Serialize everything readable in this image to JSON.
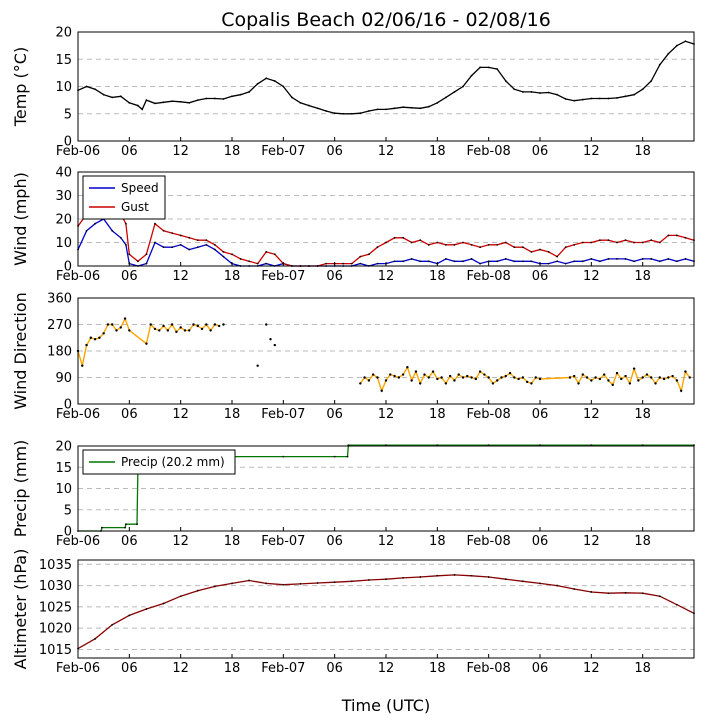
{
  "title": "Copalis Beach 02/06/16 - 02/08/16",
  "xlabel": "Time (UTC)",
  "x_tick_labels": [
    "Feb-06",
    "06",
    "12",
    "18",
    "Feb-07",
    "06",
    "12",
    "18",
    "Feb-08",
    "06",
    "12",
    "18"
  ],
  "x_tick_hours": [
    0,
    6,
    12,
    18,
    24,
    30,
    36,
    42,
    48,
    54,
    60,
    66
  ],
  "x_range_hours": [
    0,
    72
  ],
  "colors": {
    "speed": "#0000cc",
    "gust": "#cc0000",
    "direction": "#ffa500",
    "precip": "#007700",
    "altimeter": "#880000",
    "temp": "#000000",
    "grid": "#bbbbbb"
  },
  "chart_data": [
    {
      "type": "line",
      "ylabel": "Temp (°C)",
      "ylim": [
        0,
        20
      ],
      "yticks": [
        0,
        5,
        10,
        15,
        20
      ],
      "grid": true,
      "series": [
        {
          "x": [
            0,
            1,
            2,
            3,
            4,
            5,
            6,
            7,
            7.5,
            8,
            9,
            10,
            11,
            12,
            13,
            14,
            15,
            16,
            17,
            18,
            19,
            20,
            21,
            22,
            23,
            24,
            25,
            26,
            27,
            28,
            29,
            30,
            31,
            32,
            33,
            34,
            35,
            36,
            37,
            38,
            39,
            40,
            41,
            42,
            43,
            44,
            45,
            46,
            47,
            48,
            49,
            50,
            51,
            52,
            53,
            54,
            55,
            56,
            57,
            58,
            59,
            60,
            61,
            62,
            63,
            64,
            65,
            66,
            67,
            68,
            69,
            70,
            71,
            72
          ],
          "values": [
            9.3,
            10,
            9.5,
            8.5,
            8,
            8.2,
            7,
            6.5,
            5.8,
            7.5,
            6.9,
            7.1,
            7.3,
            7.2,
            7.0,
            7.5,
            7.8,
            7.8,
            7.7,
            8.2,
            8.5,
            9,
            10.5,
            11.5,
            11,
            10,
            8,
            7,
            6.5,
            6,
            5.5,
            5.1,
            5,
            5,
            5.1,
            5.5,
            5.8,
            5.8,
            6,
            6.2,
            6.1,
            6.0,
            6.3,
            7,
            8,
            9,
            10,
            12,
            13.5,
            13.5,
            13.2,
            11,
            9.5,
            9,
            9,
            8.8,
            8.9,
            8.5,
            7.7,
            7.4,
            7.6,
            7.8,
            7.8,
            7.8,
            7.9,
            8.2,
            8.5,
            9.5,
            11,
            14,
            16,
            17.5,
            18.3,
            17.8
          ]
        }
      ]
    },
    {
      "type": "line",
      "ylabel": "Wind (mph)",
      "ylim": [
        0,
        40
      ],
      "yticks": [
        0,
        10,
        20,
        30,
        40
      ],
      "grid": true,
      "legend": "top-left",
      "series": [
        {
          "name": "Speed",
          "x": [
            0,
            1,
            2,
            3,
            4,
            5,
            5.6,
            6,
            7,
            8,
            9,
            10,
            11,
            12,
            13,
            14,
            15,
            16,
            17,
            18,
            19,
            20,
            21,
            22,
            23,
            24,
            25,
            26,
            27,
            28,
            29,
            30,
            31,
            32,
            33,
            34,
            35,
            36,
            37,
            38,
            39,
            40,
            41,
            42,
            43,
            44,
            45,
            46,
            47,
            48,
            49,
            50,
            51,
            52,
            53,
            54,
            55,
            56,
            57,
            58,
            59,
            60,
            61,
            62,
            63,
            64,
            65,
            66,
            67,
            68,
            69,
            70,
            71,
            72
          ],
          "values": [
            7,
            15,
            18,
            20,
            15,
            12,
            9,
            1,
            0,
            1,
            10,
            8,
            8,
            9,
            7,
            8,
            9,
            7,
            4,
            1,
            0,
            0,
            0,
            1,
            0,
            1,
            0,
            0,
            0,
            0,
            0,
            0,
            0,
            0,
            1,
            0,
            1,
            1,
            2,
            2,
            3,
            2,
            2,
            1,
            3,
            2,
            2,
            3,
            1,
            2,
            2,
            3,
            2,
            2,
            2,
            1,
            1,
            2,
            1,
            2,
            2,
            3,
            2,
            3,
            3,
            3,
            2,
            3,
            3,
            2,
            3,
            2,
            3,
            2
          ]
        },
        {
          "name": "Gust",
          "x": [
            0,
            1,
            2,
            3,
            4,
            5,
            5.6,
            6,
            7,
            8,
            9,
            10,
            11,
            12,
            13,
            14,
            15,
            16,
            17,
            18,
            19,
            20,
            21,
            22,
            23,
            24,
            25,
            26,
            27,
            28,
            29,
            30,
            31,
            32,
            33,
            34,
            35,
            36,
            37,
            38,
            39,
            40,
            41,
            42,
            43,
            44,
            45,
            46,
            47,
            48,
            49,
            50,
            51,
            52,
            53,
            54,
            55,
            56,
            57,
            58,
            59,
            60,
            61,
            62,
            63,
            64,
            65,
            66,
            67,
            68,
            69,
            70,
            71,
            72
          ],
          "values": [
            17,
            22,
            26,
            24,
            26,
            22,
            18,
            5,
            2,
            5,
            18,
            15,
            14,
            13,
            12,
            11,
            11,
            9,
            6,
            5,
            3,
            2,
            1,
            6,
            5,
            1,
            0,
            0,
            0,
            0,
            1,
            1,
            1,
            1,
            4,
            5,
            8,
            10,
            12,
            12,
            10,
            11,
            9,
            10,
            9,
            9,
            10,
            9,
            8,
            9,
            9,
            10,
            8,
            8,
            6,
            7,
            6,
            4,
            8,
            9,
            10,
            10,
            11,
            11,
            10,
            11,
            10,
            10,
            11,
            10,
            13,
            13,
            12,
            11
          ]
        }
      ]
    },
    {
      "type": "scatter",
      "ylabel": "Wind Direction",
      "ylim": [
        0,
        360
      ],
      "yticks": [
        0,
        90,
        180,
        270,
        360
      ],
      "grid": true,
      "series": [
        {
          "x": [
            0,
            0.5,
            1,
            1.5,
            2,
            2.5,
            3,
            3.5,
            4,
            4.5,
            5,
            5.5,
            6,
            8,
            8.5,
            9,
            9.5,
            10,
            10.5,
            11,
            11.5,
            12,
            12.5,
            13,
            13.5,
            14,
            14.5,
            15,
            15.5,
            16,
            16.5
          ],
          "values": [
            180,
            130,
            200,
            225,
            220,
            225,
            240,
            270,
            270,
            250,
            260,
            290,
            250,
            205,
            270,
            255,
            250,
            265,
            250,
            270,
            245,
            260,
            250,
            250,
            270,
            265,
            255,
            270,
            250,
            270,
            265
          ]
        },
        {
          "x": [
            33,
            33.5,
            34,
            34.5,
            35,
            35.5,
            36,
            36.5,
            37,
            37.5,
            38,
            38.5,
            39,
            39.5,
            40,
            40.5,
            41,
            41.5,
            42,
            42.5,
            43,
            43.5,
            44,
            44.5,
            45,
            45.5,
            46,
            46.5,
            47,
            47.5,
            48,
            48.5,
            49,
            49.5,
            50,
            50.5,
            51,
            51.5,
            52,
            52.5,
            53,
            53.5,
            54,
            57.5,
            58,
            58.5,
            59,
            59.5,
            60,
            60.5,
            61,
            61.5,
            62,
            62.5,
            63,
            63.5,
            64,
            64.5,
            65,
            65.5,
            66,
            66.5,
            67,
            67.5,
            68,
            68.5,
            69,
            69.5,
            70,
            70.5,
            71,
            71.5
          ],
          "values": [
            70,
            90,
            80,
            100,
            90,
            45,
            80,
            100,
            95,
            90,
            100,
            125,
            80,
            110,
            70,
            100,
            90,
            110,
            85,
            90,
            70,
            95,
            80,
            100,
            90,
            95,
            90,
            85,
            110,
            100,
            90,
            70,
            80,
            90,
            95,
            105,
            90,
            85,
            90,
            75,
            70,
            90,
            85,
            90,
            95,
            70,
            100,
            90,
            80,
            90,
            85,
            100,
            80,
            65,
            105,
            85,
            95,
            70,
            120,
            80,
            90,
            100,
            90,
            70,
            90,
            85,
            90,
            95,
            80,
            45,
            110,
            90
          ]
        },
        {
          "x": [
            17,
            21,
            22,
            22.5,
            23
          ],
          "values": [
            270,
            130,
            270,
            220,
            200
          ]
        }
      ]
    },
    {
      "type": "line",
      "ylabel": "Precip (mm)",
      "ylim": [
        0,
        20
      ],
      "yticks": [
        0,
        5,
        10,
        15,
        20
      ],
      "grid": true,
      "legend": "top-left",
      "series": [
        {
          "name": "Precip (20.2 mm)",
          "x": [
            0,
            2.7,
            2.8,
            5.5,
            5.6,
            6.9,
            7.0,
            8.5,
            8.6,
            9.5,
            10,
            12,
            18,
            24,
            30,
            31.5,
            31.6,
            36,
            42,
            48,
            54,
            60,
            66,
            72
          ],
          "values": [
            0,
            0,
            0.8,
            0.8,
            1.6,
            1.6,
            14.3,
            14.3,
            15.9,
            17.2,
            17.5,
            17.5,
            17.5,
            17.5,
            17.5,
            17.5,
            20.2,
            20.2,
            20.2,
            20.2,
            20.2,
            20.2,
            20.2,
            20.2
          ]
        }
      ]
    },
    {
      "type": "line",
      "ylabel": "Altimeter (hPa)",
      "ylim": [
        1013,
        1036
      ],
      "yticks": [
        1015,
        1020,
        1025,
        1030,
        1035
      ],
      "grid": true,
      "series": [
        {
          "x": [
            0,
            2,
            4,
            6,
            8,
            10,
            12,
            14,
            16,
            18,
            20,
            22,
            24,
            26,
            28,
            30,
            32,
            34,
            36,
            38,
            40,
            42,
            44,
            46,
            48,
            50,
            52,
            54,
            56,
            58,
            60,
            62,
            64,
            66,
            68,
            70,
            72
          ],
          "values": [
            1015.2,
            1017.5,
            1020.8,
            1023,
            1024.5,
            1025.8,
            1027.5,
            1028.8,
            1029.8,
            1030.5,
            1031.2,
            1030.5,
            1030.2,
            1030.4,
            1030.6,
            1030.8,
            1031,
            1031.3,
            1031.5,
            1031.8,
            1032,
            1032.3,
            1032.5,
            1032.3,
            1032,
            1031.5,
            1031,
            1030.5,
            1030,
            1029.2,
            1028.5,
            1028.2,
            1028.3,
            1028.2,
            1027.5,
            1025.5,
            1023.5
          ]
        }
      ]
    }
  ]
}
